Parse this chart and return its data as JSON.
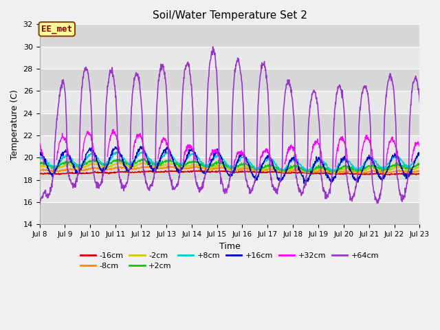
{
  "title": "Soil/Water Temperature Set 2",
  "xlabel": "Time",
  "ylabel": "Temperature (C)",
  "ylim": [
    14,
    32
  ],
  "yticks": [
    14,
    16,
    18,
    20,
    22,
    24,
    26,
    28,
    30,
    32
  ],
  "n_days": 15,
  "fig_bg_color": "#f0f0f0",
  "plot_bg_color": "#e8e8e8",
  "annotation_text": "EE_met",
  "annotation_box_color": "#ffff99",
  "annotation_border_color": "#8B4513",
  "annotation_text_color": "#8B0000",
  "series_colors": {
    "-16cm": "#cc0000",
    "-8cm": "#ff8800",
    "-2cm": "#cccc00",
    "+2cm": "#00cc00",
    "+8cm": "#00cccc",
    "+16cm": "#0000cc",
    "+32cm": "#ff00ff",
    "+64cm": "#9933cc"
  },
  "legend_order": [
    "-16cm",
    "-8cm",
    "-2cm",
    "+2cm",
    "+8cm",
    "+16cm",
    "+32cm",
    "+64cm"
  ],
  "band_colors": [
    "#d8d8d8",
    "#e8e8e8"
  ]
}
